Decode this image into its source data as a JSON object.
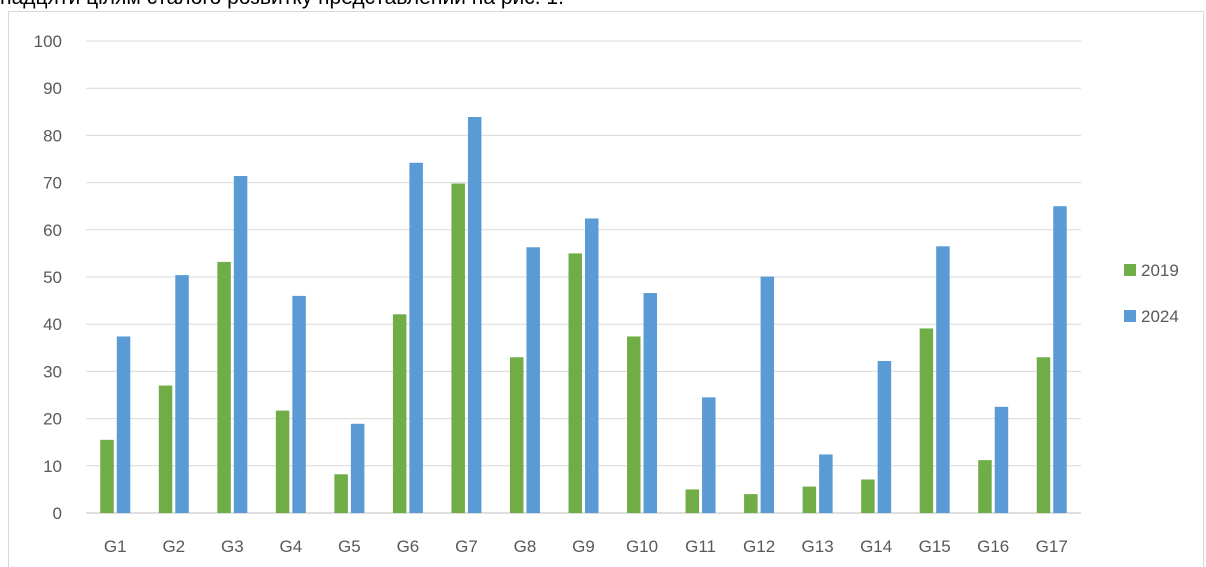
{
  "page_text": {
    "cut_line": "надцяти цілям сталого розвитку представлений на рис. 1."
  },
  "chart_data": {
    "type": "bar",
    "title": "",
    "xlabel": "",
    "ylabel": "",
    "categories": [
      "G1",
      "G2",
      "G3",
      "G4",
      "G5",
      "G6",
      "G7",
      "G8",
      "G9",
      "G10",
      "G11",
      "G12",
      "G13",
      "G14",
      "G15",
      "G16",
      "G17"
    ],
    "series": [
      {
        "name": "2019",
        "color": "#70ad47",
        "values": [
          15.5,
          27.0,
          53.2,
          21.7,
          8.2,
          42.1,
          69.8,
          33.0,
          55.0,
          37.4,
          5.0,
          4.0,
          5.6,
          7.1,
          39.1,
          11.2,
          33.0
        ]
      },
      {
        "name": "2024",
        "color": "#5b9bd5",
        "values": [
          37.4,
          50.4,
          71.4,
          46.0,
          18.9,
          74.2,
          83.9,
          56.3,
          62.4,
          46.6,
          24.5,
          50.1,
          12.4,
          32.2,
          56.5,
          22.5,
          65.0
        ]
      }
    ],
    "ylim": [
      0,
      100
    ],
    "yticks": [
      "0",
      "10",
      "20",
      "30",
      "40",
      "50",
      "60",
      "70",
      "80",
      "90",
      "100"
    ],
    "grid": true,
    "legend_position": "right"
  }
}
